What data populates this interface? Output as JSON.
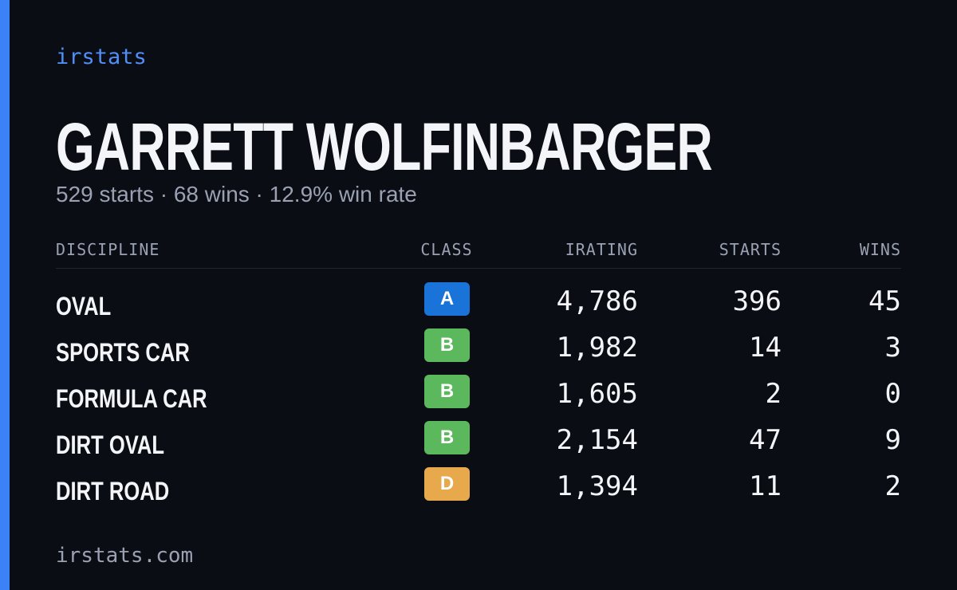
{
  "brand": "irstats",
  "driver": {
    "name": "GARRETT WOLFINBARGER",
    "summary": "529 starts · 68 wins · 12.9% win rate"
  },
  "table": {
    "headers": [
      "DISCIPLINE",
      "CLASS",
      "IRATING",
      "STARTS",
      "WINS"
    ],
    "rows": [
      [
        "OVAL",
        "A",
        "4,786",
        "396",
        "45"
      ],
      [
        "SPORTS CAR",
        "B",
        "1,982",
        "14",
        "3"
      ],
      [
        "FORMULA CAR",
        "B",
        "1,605",
        "2",
        "0"
      ],
      [
        "DIRT OVAL",
        "B",
        "2,154",
        "47",
        "9"
      ],
      [
        "DIRT ROAD",
        "D",
        "1,394",
        "11",
        "2"
      ]
    ]
  },
  "footer": "irstats.com"
}
